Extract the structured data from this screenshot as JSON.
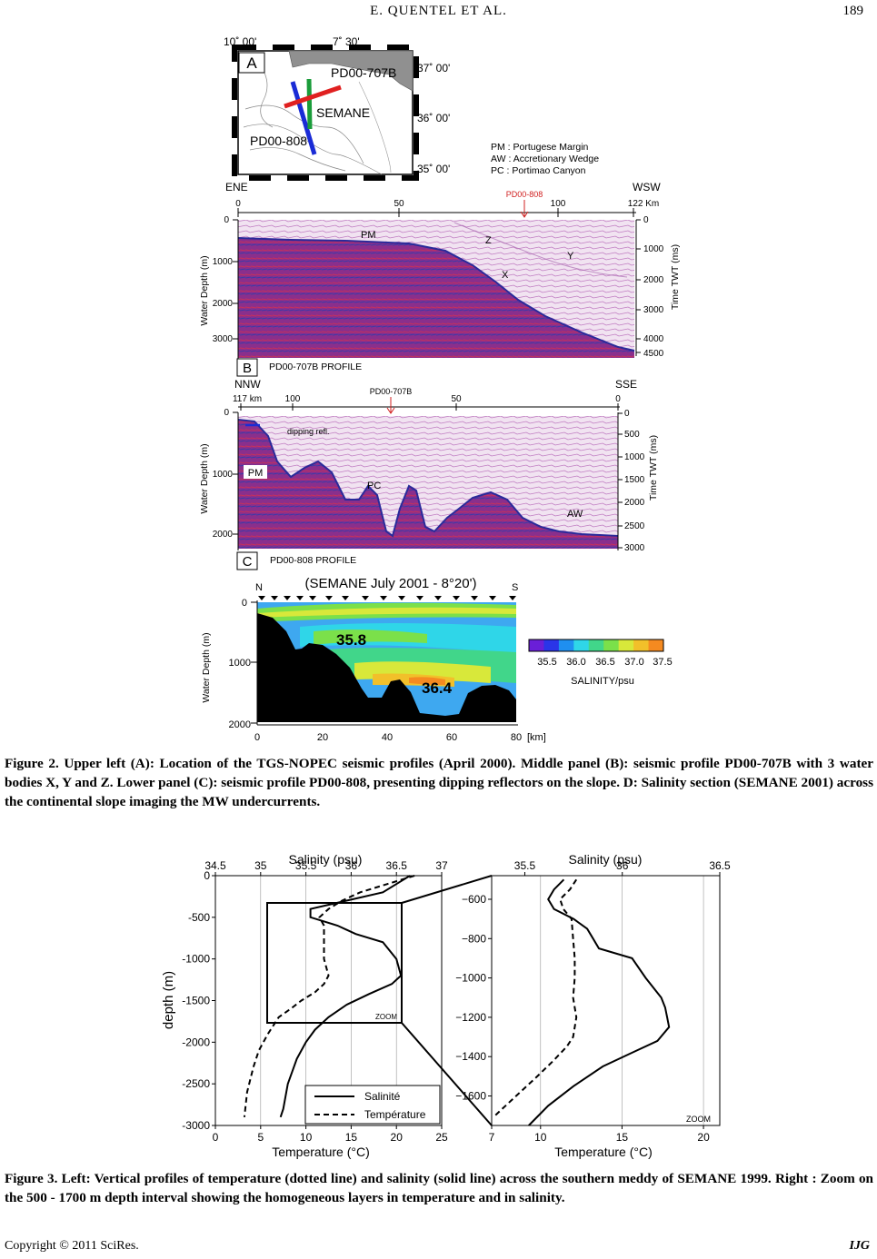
{
  "header": {
    "title": "E. QUENTEL    ET    AL.",
    "page_number": "189"
  },
  "figure2": {
    "map": {
      "panel_letter": "A",
      "lon_labels": [
        "10˚ 00'",
        "7˚ 30'"
      ],
      "lat_labels": [
        "37˚ 00'",
        "36˚ 00'",
        "35˚ 00'"
      ],
      "profile_labels": [
        "PD00-707B",
        "SEMANE",
        "PD00-808"
      ],
      "profile_colors": {
        "PD00-707B": "#e02020",
        "SEMANE": "#1a9c3a",
        "PD00-808": "#1a2bd6"
      }
    },
    "legend_lines": [
      "PM : Portugese Margin",
      "AW : Accretionary Wedge",
      "PC : Portimao Canyon"
    ],
    "panel_b": {
      "letter": "B",
      "left_dir": "ENE",
      "right_dir": "WSW",
      "km_ticks": [
        "0",
        "50",
        "100",
        "122 Km"
      ],
      "marker": "PD00-808",
      "depth_label": "Water Depth (m)",
      "depth_ticks": [
        "0",
        "1000",
        "2000",
        "3000"
      ],
      "twt_label": "Time TWT  (ms)",
      "twt_ticks": [
        "0",
        "1000",
        "2000",
        "3000",
        "4000",
        "4500"
      ],
      "annotations": [
        "PM",
        "Z",
        "Y",
        "X"
      ],
      "profile_title": "PD00-707B PROFILE"
    },
    "panel_c": {
      "letter": "C",
      "left_dir": "NNW",
      "right_dir": "SSE",
      "km_ticks": [
        "117 km",
        "100",
        "50",
        "0"
      ],
      "marker": "PD00-707B",
      "depth_label": "Water Depth  (m)",
      "depth_ticks": [
        "0",
        "1000",
        "2000"
      ],
      "twt_label": "Time TWT  (ms)",
      "twt_ticks": [
        "0",
        "500",
        "1000",
        "1500",
        "2000",
        "2500",
        "3000"
      ],
      "annotations": [
        "dipping refl.",
        "PM",
        "PC",
        "AW"
      ],
      "profile_title": "PD00-808 PROFILE"
    },
    "panel_d": {
      "title": "(SEMANE July 2001 - 8°20')",
      "north": "N",
      "south": "S",
      "depth_label": "Water Depth (m)",
      "depth_ticks": [
        "0",
        "1000",
        "2000"
      ],
      "km_ticks": [
        "0",
        "20",
        "40",
        "60",
        "80"
      ],
      "km_unit": "[km]",
      "values": [
        "35.8",
        "36.4"
      ],
      "colorbar_ticks": [
        "35.5",
        "36.0",
        "36.5",
        "37.0",
        "37.5"
      ],
      "colorbar_colors": [
        "#6a1fd8",
        "#2a35e8",
        "#1f8ff0",
        "#2fd6e8",
        "#41d68a",
        "#7be04a",
        "#d8e83a",
        "#f2c02a",
        "#f58a20"
      ],
      "colorbar_label": "SALINITY/psu"
    },
    "caption": "Figure 2. Upper left (A): Location of the TGS-NOPEC seismic profiles (April 2000). Middle panel (B): seismic profile PD00-707B with 3 water bodies X, Y and Z. Lower panel (C): seismic profile PD00-808, presenting dipping reflectors on the slope. D: Salinity section (SEMANE 2001) across the continental slope imaging the MW undercurrents."
  },
  "figure3": {
    "left_chart": {
      "top_axis_title": "Salinity (psu)",
      "top_ticks": [
        "34.5",
        "35",
        "35.5",
        "36",
        "36.5",
        "37"
      ],
      "bottom_axis_title": "Temperature (°C)",
      "bottom_ticks": [
        "0",
        "5",
        "10",
        "15",
        "20",
        "25"
      ],
      "y_axis_title": "depth (m)",
      "y_ticks": [
        "0",
        "-500",
        "-1000",
        "-1500",
        "-2000",
        "-2500",
        "-3000"
      ],
      "zoom_label": "ZOOM",
      "legend": [
        "Salinité",
        "Température"
      ]
    },
    "right_chart": {
      "top_axis_title": "Salinity (psu)",
      "top_ticks": [
        "35.5",
        "36",
        "36.5"
      ],
      "bottom_axis_title": "Temperature (°C)",
      "bottom_ticks": [
        "7",
        "10",
        "15",
        "20"
      ],
      "y_ticks": [
        "−600",
        "−800",
        "−1000",
        "−1200",
        "−1400",
        "−1600"
      ],
      "zoom_label": "ZOOM"
    },
    "caption": "Figure 3. Left: Vertical profiles of temperature (dotted line) and salinity (solid line) across the southern meddy of SEMANE 1999. Right : Zoom on the 500 - 1700 m depth interval showing the homogeneous layers in temperature and in salinity."
  },
  "chart_data": [
    {
      "type": "line",
      "title": "",
      "xlabel": "Temperature (°C) / Salinity (psu)",
      "ylabel": "depth (m)",
      "xlim_temperature": [
        0,
        25
      ],
      "xlim_salinity": [
        34.5,
        37
      ],
      "ylim": [
        -3000,
        0
      ],
      "grid": true,
      "legend_position": "bottom-right",
      "series": [
        {
          "name": "Salinité",
          "x_unit": "psu",
          "x": [
            36.65,
            36.5,
            36.35,
            35.95,
            35.55,
            35.55,
            35.85,
            36.05,
            36.35,
            36.5,
            36.55,
            36.45,
            36.2,
            35.95,
            35.75,
            35.6,
            35.5,
            35.4,
            35.3,
            35.25,
            35.22
          ],
          "y": [
            0,
            -100,
            -200,
            -300,
            -400,
            -500,
            -600,
            -700,
            -800,
            -1000,
            -1200,
            -1300,
            -1420,
            -1550,
            -1700,
            -1850,
            -2000,
            -2200,
            -2500,
            -2800,
            -2900
          ]
        },
        {
          "name": "Température",
          "x_unit": "°C",
          "x": [
            22,
            19,
            16,
            14,
            12.5,
            11.5,
            12,
            12,
            12,
            12.5,
            12,
            11,
            9.5,
            8.3,
            7,
            5.8,
            4.8,
            4.2,
            3.5,
            3.2
          ],
          "y": [
            0,
            -100,
            -200,
            -300,
            -400,
            -500,
            -600,
            -800,
            -1000,
            -1200,
            -1300,
            -1400,
            -1500,
            -1600,
            -1700,
            -1900,
            -2100,
            -2300,
            -2600,
            -2900
          ]
        }
      ]
    },
    {
      "type": "line",
      "title": "",
      "xlabel": "Temperature (°C) / Salinity (psu)",
      "ylabel": "depth (m)",
      "xlim_temperature": [
        7,
        21
      ],
      "xlim_salinity": [
        35.33,
        36.5
      ],
      "ylim": [
        -1750,
        -480
      ],
      "grid": true,
      "legend_position": "none",
      "series": [
        {
          "name": "Salinité",
          "x_unit": "psu",
          "x": [
            35.7,
            35.65,
            35.62,
            35.65,
            35.75,
            35.82,
            35.85,
            35.88,
            36.05,
            36.12,
            36.2,
            36.22,
            36.23,
            36.24,
            36.18,
            36.05,
            35.9,
            35.75,
            35.62,
            35.52
          ],
          "y": [
            -500,
            -550,
            -600,
            -650,
            -700,
            -750,
            -800,
            -850,
            -900,
            -1000,
            -1100,
            -1150,
            -1200,
            -1250,
            -1320,
            -1380,
            -1450,
            -1550,
            -1650,
            -1750
          ]
        },
        {
          "name": "Température",
          "x_unit": "°C",
          "x": [
            12.2,
            11.8,
            11.2,
            11.4,
            11.9,
            12.0,
            12.1,
            12.1,
            12.0,
            12.2,
            12.0,
            11.6,
            10.8,
            9.8,
            8.5,
            7.2
          ],
          "y": [
            -500,
            -550,
            -600,
            -650,
            -700,
            -800,
            -900,
            -1000,
            -1100,
            -1200,
            -1300,
            -1350,
            -1420,
            -1500,
            -1600,
            -1700
          ]
        }
      ]
    }
  ]
}
